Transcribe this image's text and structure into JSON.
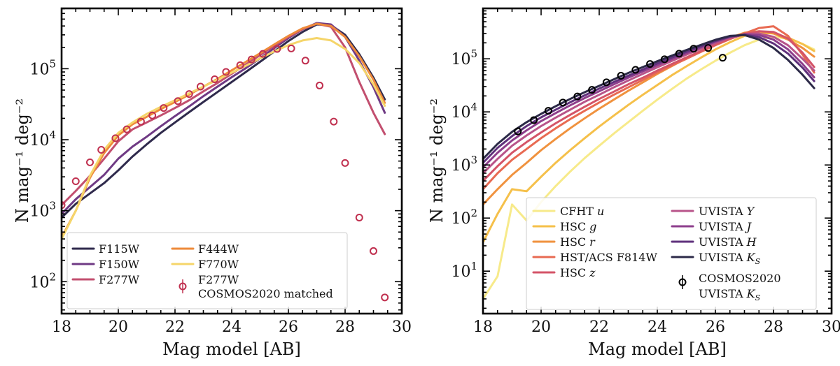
{
  "chart_data": [
    {
      "type": "line",
      "panel": "left",
      "xlabel": "Mag model [AB]",
      "ylabel": "N  mag⁻¹ deg⁻²",
      "xlim": [
        18,
        30
      ],
      "ylim_log10": [
        1.55,
        5.85
      ],
      "yscale": "log",
      "xticks": [
        "18",
        "20",
        "22",
        "24",
        "26",
        "28",
        "30"
      ],
      "yticks": [
        {
          "exp": "2",
          "base": "10"
        },
        {
          "exp": "3",
          "base": "10"
        },
        {
          "exp": "4",
          "base": "10"
        },
        {
          "exp": "5",
          "base": "10"
        }
      ],
      "legend_position": "bottom-left",
      "x": [
        18.0,
        18.5,
        19.0,
        19.5,
        20.0,
        20.5,
        21.0,
        21.5,
        22.0,
        22.5,
        23.0,
        23.5,
        24.0,
        24.5,
        25.0,
        25.5,
        26.0,
        26.5,
        27.0,
        27.5,
        28.0,
        28.5,
        29.0,
        29.4
      ],
      "series": [
        {
          "name": "F115W",
          "label": "F115W",
          "color": "#2f2a4c",
          "values": [
            800,
            1250,
            1750,
            2450,
            3700,
            5800,
            8600,
            12500,
            17500,
            24500,
            34000,
            47000,
            65000,
            90000,
            125000,
            175000,
            245000,
            330000,
            420000,
            410000,
            300000,
            160000,
            75000,
            37000
          ]
        },
        {
          "name": "F150W",
          "label": "F150W",
          "color": "#6f3a84",
          "values": [
            900,
            1450,
            2150,
            3200,
            5400,
            8000,
            11000,
            15500,
            21500,
            29500,
            41000,
            56000,
            76000,
            102000,
            140000,
            195000,
            270000,
            360000,
            440000,
            420000,
            280000,
            130000,
            55000,
            24000
          ]
        },
        {
          "name": "F277W",
          "label": "F277W",
          "color": "#c24f6f",
          "values": [
            1200,
            1900,
            3100,
            5400,
            9500,
            14000,
            17500,
            22000,
            28000,
            36000,
            48000,
            63000,
            85000,
            115000,
            155000,
            210000,
            280000,
            360000,
            430000,
            390000,
            200000,
            65000,
            24000,
            12000
          ]
        },
        {
          "name": "F444W",
          "label": "F444W",
          "color": "#ee8a3a",
          "values": [
            420,
            1000,
            2900,
            6500,
            11500,
            16500,
            21000,
            27000,
            34000,
            43000,
            56000,
            72000,
            95000,
            125000,
            165000,
            220000,
            290000,
            370000,
            430000,
            400000,
            280000,
            150000,
            70000,
            33000
          ]
        },
        {
          "name": "F770W",
          "label": "F770W",
          "color": "#f5d56a",
          "values": [
            400,
            1000,
            3100,
            7200,
            12500,
            17500,
            23000,
            29000,
            36000,
            45000,
            56000,
            70000,
            88000,
            110000,
            140000,
            175000,
            215000,
            250000,
            270000,
            250000,
            190000,
            120000,
            60000,
            30000
          ]
        }
      ],
      "points": {
        "name": "COSMOS2020 matched",
        "label_line1": "F277W",
        "label_line2": "COSMOS2020 matched",
        "color": "#c0304f",
        "x": [
          18.0,
          18.5,
          19.0,
          19.4,
          19.9,
          20.3,
          20.8,
          21.2,
          21.6,
          22.1,
          22.5,
          22.9,
          23.4,
          23.8,
          24.3,
          24.7,
          25.1,
          25.6,
          26.1,
          26.6,
          27.1,
          27.6,
          28.0,
          28.5,
          29.0,
          29.4
        ],
        "y": [
          1200,
          2600,
          4800,
          7200,
          10500,
          14000,
          18000,
          22000,
          28000,
          35000,
          44000,
          56000,
          71000,
          90000,
          112000,
          135000,
          162000,
          190000,
          193000,
          130000,
          58000,
          18000,
          4700,
          800,
          270,
          60
        ]
      }
    },
    {
      "type": "line",
      "panel": "right",
      "xlabel": "Mag model [AB]",
      "ylabel": "N  mag⁻¹ deg⁻²",
      "xlim": [
        18,
        30
      ],
      "ylim_log10": [
        0.2,
        5.95
      ],
      "yscale": "log",
      "xticks": [
        "18",
        "20",
        "22",
        "24",
        "26",
        "28",
        "30"
      ],
      "yticks": [
        {
          "exp": "1",
          "base": "10"
        },
        {
          "exp": "2",
          "base": "10"
        },
        {
          "exp": "3",
          "base": "10"
        },
        {
          "exp": "4",
          "base": "10"
        },
        {
          "exp": "5",
          "base": "10"
        }
      ],
      "legend_position": "bottom",
      "x": [
        18.0,
        18.5,
        19.0,
        19.5,
        20.0,
        20.5,
        21.0,
        21.5,
        22.0,
        22.5,
        23.0,
        23.5,
        24.0,
        24.5,
        25.0,
        25.5,
        26.0,
        26.5,
        27.0,
        27.5,
        28.0,
        28.5,
        29.0,
        29.4
      ],
      "series": [
        {
          "name": "CFHT u",
          "label": "CFHT",
          "label_italic": "u",
          "color": "#f7ea8a",
          "values": [
            3,
            8,
            180,
            90,
            200,
            400,
            750,
            1350,
            2300,
            3900,
            6400,
            10500,
            17000,
            27000,
            42000,
            63000,
            92000,
            130000,
            180000,
            230000,
            260000,
            240000,
            190000,
            150000
          ]
        },
        {
          "name": "HSC g",
          "label": "HSC",
          "label_italic": "g",
          "color": "#f5c04a",
          "values": [
            35,
            120,
            350,
            320,
            600,
            1100,
            1900,
            3200,
            5300,
            8500,
            13500,
            21000,
            32000,
            49000,
            72000,
            105000,
            150000,
            205000,
            270000,
            310000,
            300000,
            250000,
            190000,
            140000
          ]
        },
        {
          "name": "HSC r",
          "label": "HSC",
          "label_italic": "r",
          "color": "#f0923e",
          "values": [
            180,
            350,
            650,
            1100,
            1900,
            3100,
            4900,
            7600,
            11500,
            17000,
            25000,
            36000,
            52000,
            73000,
            102000,
            140000,
            190000,
            250000,
            310000,
            330000,
            300000,
            230000,
            160000,
            110000
          ]
        },
        {
          "name": "HST/ACS F814W",
          "label": "HST/ACS F814W",
          "label_italic": "",
          "color": "#e86a52",
          "values": [
            350,
            700,
            1250,
            2000,
            3200,
            4900,
            7300,
            10500,
            15000,
            21000,
            29000,
            40000,
            55000,
            75000,
            100000,
            135000,
            180000,
            235000,
            300000,
            380000,
            410000,
            270000,
            120000,
            55000
          ]
        },
        {
          "name": "HSC z",
          "label": "HSC",
          "label_italic": "z",
          "color": "#d45468",
          "values": [
            500,
            950,
            1700,
            2700,
            4100,
            6100,
            8800,
            12500,
            17500,
            24000,
            33000,
            44000,
            60000,
            80000,
            106000,
            140000,
            185000,
            240000,
            290000,
            330000,
            320000,
            240000,
            130000,
            70000
          ]
        },
        {
          "name": "UVISTA Y",
          "label": "UVISTA",
          "label_italic": "Y",
          "color": "#b8548a",
          "values": [
            700,
            1300,
            2300,
            3600,
            5400,
            7800,
            11000,
            15500,
            21000,
            29000,
            39000,
            52000,
            69000,
            91000,
            120000,
            155000,
            200000,
            250000,
            290000,
            300000,
            260000,
            180000,
            100000,
            60000
          ]
        },
        {
          "name": "UVISTA J",
          "label": "UVISTA",
          "label_italic": "J",
          "color": "#8e3e8c",
          "values": [
            900,
            1700,
            2900,
            4500,
            6700,
            9500,
            13300,
            18200,
            24500,
            33000,
            44000,
            58000,
            76000,
            99000,
            128000,
            165000,
            210000,
            258000,
            290000,
            280000,
            230000,
            150000,
            80000,
            45000
          ]
        },
        {
          "name": "UVISTA H",
          "label": "UVISTA",
          "label_italic": "H",
          "color": "#5f317c",
          "values": [
            1100,
            2100,
            3500,
            5400,
            7900,
            11000,
            15200,
            20500,
            27500,
            36500,
            48000,
            63000,
            82000,
            106000,
            136000,
            173000,
            218000,
            262000,
            285000,
            255000,
            195000,
            125000,
            68000,
            38000
          ]
        },
        {
          "name": "UVISTA KS",
          "label": "UVISTA",
          "label_italic": "K",
          "label_sub": "S",
          "color": "#2c2a48",
          "values": [
            1300,
            2500,
            4200,
            6400,
            9200,
            12800,
            17500,
            23500,
            31000,
            41000,
            54000,
            70000,
            90000,
            115000,
            146000,
            183000,
            228000,
            270000,
            280000,
            230000,
            160000,
            95000,
            50000,
            28000
          ]
        }
      ],
      "points": {
        "name": "COSMOS2020 UVISTA KS",
        "label_line1": "COSMOS2020",
        "label_line2": "UVISTA",
        "label_line2_italic": "K",
        "label_line2_sub": "S",
        "color": "#000000",
        "x": [
          19.2,
          19.75,
          20.25,
          20.75,
          21.25,
          21.75,
          22.25,
          22.75,
          23.25,
          23.75,
          24.25,
          24.75,
          25.25,
          25.75,
          26.25
        ],
        "y": [
          4300,
          7000,
          10500,
          15000,
          19500,
          26000,
          36000,
          48000,
          62000,
          80000,
          98000,
          125000,
          155000,
          160000,
          105000
        ]
      }
    }
  ]
}
